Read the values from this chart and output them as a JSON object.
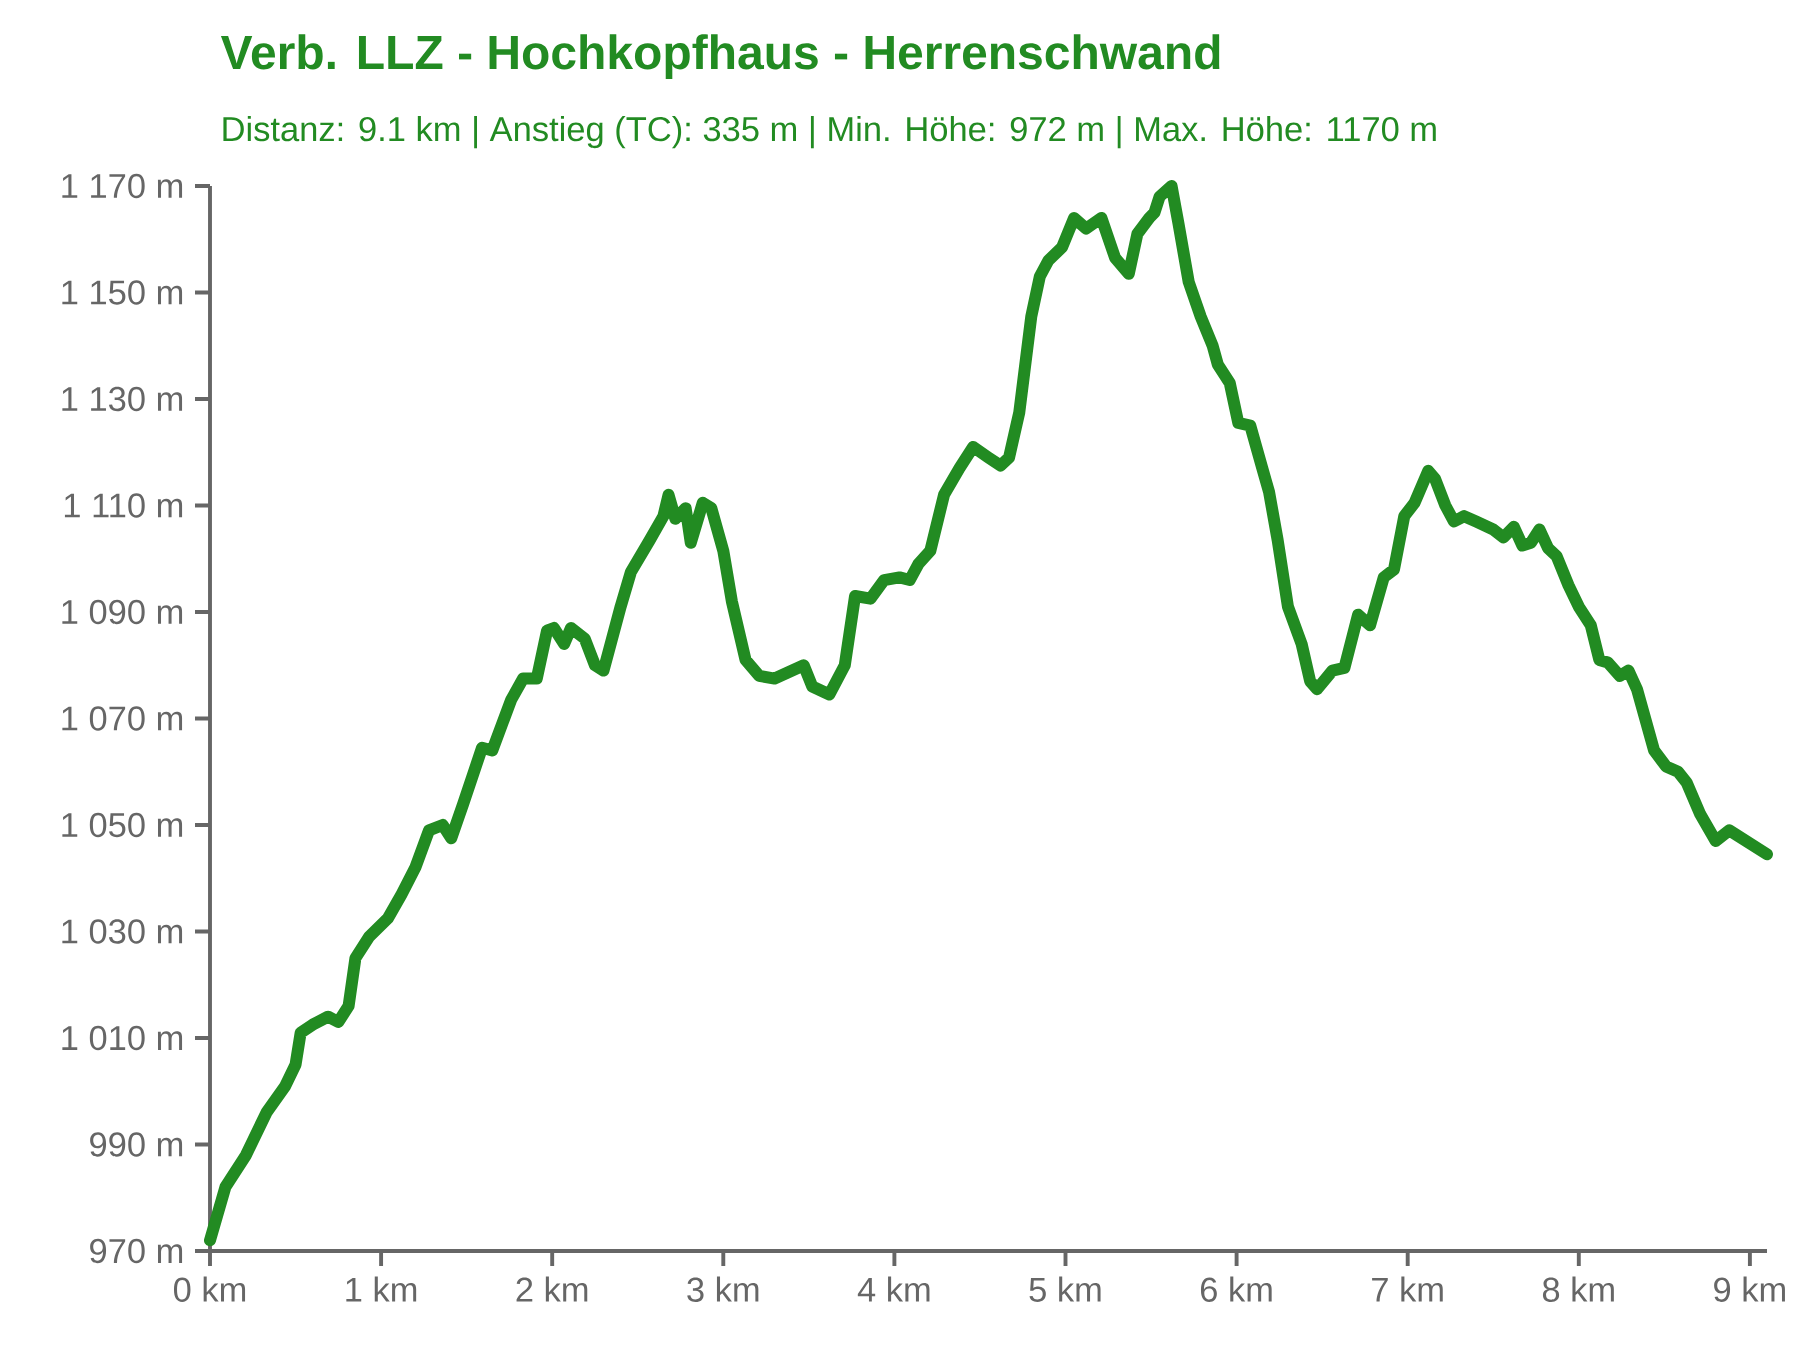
{
  "chart_data": {
    "type": "line",
    "title": "Verb. LLZ - Hochkopfhaus - Herrenschwand",
    "subtitle": "Distanz: 9.1 km | Anstieg (TC): 335 m | Min. Höhe: 972 m | Max. Höhe: 1170 m",
    "series": [
      {
        "color": "#228b22",
        "x": [
          0,
          0.09,
          0.21,
          0.33,
          0.44,
          0.5,
          0.53,
          0.6,
          0.69,
          0.75,
          0.81,
          0.85,
          0.93,
          1.04,
          1.12,
          1.2,
          1.28,
          1.36,
          1.41,
          1.48,
          1.59,
          1.65,
          1.76,
          1.83,
          1.91,
          1.97,
          2.01,
          2.07,
          2.11,
          2.19,
          2.25,
          2.3,
          2.4,
          2.46,
          2.57,
          2.65,
          2.68,
          2.72,
          2.78,
          2.81,
          2.88,
          2.93,
          3.0,
          3.05,
          3.13,
          3.21,
          3.3,
          3.47,
          3.52,
          3.62,
          3.71,
          3.77,
          3.86,
          3.94,
          4.03,
          4.09,
          4.14,
          4.21,
          4.29,
          4.38,
          4.46,
          4.55,
          4.62,
          4.67,
          4.73,
          4.8,
          4.85,
          4.9,
          4.98,
          5.05,
          5.12,
          5.21,
          5.29,
          5.37,
          5.42,
          5.49,
          5.52,
          5.55,
          5.62,
          5.66,
          5.72,
          5.79,
          5.86,
          5.89,
          5.96,
          6.01,
          6.08,
          6.15,
          6.19,
          6.24,
          6.3,
          6.38,
          6.43,
          6.47,
          6.56,
          6.63,
          6.71,
          6.78,
          6.86,
          6.92,
          6.98,
          7.04,
          7.12,
          7.16,
          7.22,
          7.27,
          7.33,
          7.4,
          7.5,
          7.56,
          7.62,
          7.67,
          7.72,
          7.77,
          7.82,
          7.87,
          7.94,
          8.0,
          8.07,
          8.12,
          8.17,
          8.24,
          8.29,
          8.34,
          8.44,
          8.51,
          8.58,
          8.63,
          8.71,
          8.8,
          8.88,
          9.1
        ],
        "values": [
          972,
          982,
          988,
          996,
          1001,
          1005,
          1011,
          1012.5,
          1014,
          1013,
          1016,
          1025,
          1029,
          1032.5,
          1037,
          1042,
          1049,
          1050,
          1047.5,
          1054,
          1064.5,
          1064,
          1073.5,
          1077.5,
          1077.5,
          1086.5,
          1087,
          1084,
          1087,
          1085,
          1080,
          1079,
          1091,
          1097.5,
          1103.5,
          1108,
          1112,
          1107.5,
          1109.5,
          1103,
          1110.5,
          1109.5,
          1101.5,
          1092,
          1081,
          1078,
          1077.5,
          1080,
          1076,
          1074.5,
          1080,
          1093,
          1092.5,
          1096,
          1096.5,
          1096,
          1099,
          1101.5,
          1112,
          1117,
          1121,
          1119,
          1117.5,
          1119,
          1127.5,
          1145.5,
          1153,
          1156,
          1158.5,
          1164,
          1162,
          1164,
          1156.5,
          1153.5,
          1161,
          1164,
          1165,
          1168,
          1170,
          1163,
          1152,
          1145.5,
          1140,
          1136.5,
          1133,
          1125.5,
          1125,
          1117,
          1112.5,
          1103.5,
          1091,
          1084,
          1077,
          1075.5,
          1079,
          1079.5,
          1089.5,
          1087.5,
          1096.5,
          1098,
          1108,
          1110.5,
          1116.5,
          1115,
          1110,
          1107,
          1108,
          1107,
          1105.5,
          1104,
          1106,
          1102.5,
          1103,
          1105.5,
          1102,
          1100.5,
          1095,
          1091,
          1087.5,
          1081,
          1080.5,
          1078,
          1079,
          1075.5,
          1064,
          1061,
          1060,
          1058,
          1052,
          1047,
          1049,
          1044.5
        ]
      }
    ],
    "xlim": [
      0,
      9.1
    ],
    "ylim": [
      970,
      1170
    ],
    "xticks": [
      {
        "value": 0,
        "label": "0 km"
      },
      {
        "value": 1,
        "label": "1 km"
      },
      {
        "value": 2,
        "label": "2 km"
      },
      {
        "value": 3,
        "label": "3 km"
      },
      {
        "value": 4,
        "label": "4 km"
      },
      {
        "value": 5,
        "label": "5 km"
      },
      {
        "value": 6,
        "label": "6 km"
      },
      {
        "value": 7,
        "label": "7 km"
      },
      {
        "value": 8,
        "label": "8 km"
      },
      {
        "value": 9,
        "label": "9 km"
      }
    ],
    "yticks": [
      {
        "value": 970,
        "label": "970 m"
      },
      {
        "value": 990,
        "label": "990 m"
      },
      {
        "value": 1010,
        "label": "1 010 m"
      },
      {
        "value": 1030,
        "label": "1 030 m"
      },
      {
        "value": 1050,
        "label": "1 050 m"
      },
      {
        "value": 1070,
        "label": "1 070 m"
      },
      {
        "value": 1090,
        "label": "1 090 m"
      },
      {
        "value": 1110,
        "label": "1 110 m"
      },
      {
        "value": 1130,
        "label": "1 130 m"
      },
      {
        "value": 1150,
        "label": "1 150 m"
      },
      {
        "value": 1170,
        "label": "1 170 m"
      }
    ],
    "grid": false,
    "marker": "none",
    "line_style": "solid"
  }
}
